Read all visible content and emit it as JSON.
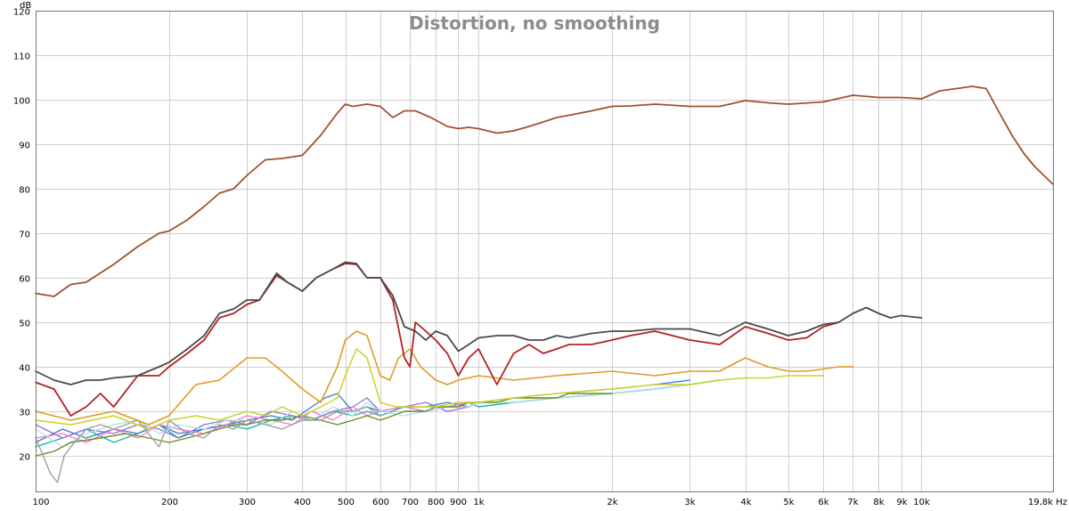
{
  "chart_data": {
    "type": "line",
    "title": "Distortion, no smoothing",
    "ylabel": "dB",
    "xunit": "Hz",
    "xscale": "log",
    "xlim": [
      100,
      19800
    ],
    "ylim": [
      12,
      120
    ],
    "grid": true,
    "legend": "none",
    "x_ticks": [
      {
        "v": 100,
        "label": "100"
      },
      {
        "v": 200,
        "label": "200"
      },
      {
        "v": 300,
        "label": "300"
      },
      {
        "v": 400,
        "label": "400"
      },
      {
        "v": 500,
        "label": "500"
      },
      {
        "v": 600,
        "label": "600"
      },
      {
        "v": 700,
        "label": "700"
      },
      {
        "v": 800,
        "label": "800"
      },
      {
        "v": 900,
        "label": "900"
      },
      {
        "v": 1000,
        "label": "1k"
      },
      {
        "v": 2000,
        "label": "2k"
      },
      {
        "v": 3000,
        "label": "3k"
      },
      {
        "v": 4000,
        "label": "4k"
      },
      {
        "v": 5000,
        "label": "5k"
      },
      {
        "v": 6000,
        "label": "6k"
      },
      {
        "v": 7000,
        "label": "7k"
      },
      {
        "v": 8000,
        "label": "8k"
      },
      {
        "v": 9000,
        "label": "9k"
      },
      {
        "v": 10000,
        "label": "10k"
      },
      {
        "v": 19800,
        "label": "19,8k Hz"
      }
    ],
    "y_ticks": [
      20,
      30,
      40,
      50,
      60,
      70,
      80,
      90,
      100,
      110,
      120
    ],
    "series": [
      {
        "color": "#a0522d",
        "width": 1.8,
        "x": [
          100,
          110,
          120,
          130,
          150,
          170,
          190,
          200,
          220,
          240,
          260,
          280,
          300,
          330,
          360,
          400,
          440,
          480,
          500,
          520,
          560,
          600,
          640,
          680,
          720,
          780,
          850,
          900,
          950,
          1000,
          1100,
          1200,
          1300,
          1400,
          1500,
          1600,
          1800,
          2000,
          2200,
          2500,
          3000,
          3500,
          4000,
          4500,
          5000,
          6000,
          7000,
          8000,
          9000,
          10000,
          11000,
          12000,
          13000,
          14000,
          15000,
          16000,
          17000,
          18000,
          19800
        ],
        "y": [
          56.5,
          55.8,
          58.5,
          59,
          63,
          67,
          70,
          70.5,
          73,
          76,
          79,
          80,
          83,
          86.5,
          86.8,
          87.5,
          92,
          97,
          99,
          98.5,
          99,
          98.5,
          96,
          97.5,
          97.5,
          96,
          94,
          93.5,
          93.8,
          93.5,
          92.5,
          93,
          94,
          95,
          96,
          96.5,
          97.5,
          98.5,
          98.6,
          99,
          98.5,
          98.5,
          99.8,
          99.3,
          99,
          99.5,
          101,
          100.5,
          100.5,
          100.2,
          102,
          102.5,
          103,
          102.5,
          97,
          92,
          88,
          85,
          81
        ]
      },
      {
        "color": "#4a4a4a",
        "width": 1.8,
        "x": [
          100,
          110,
          120,
          130,
          140,
          150,
          170,
          190,
          200,
          220,
          240,
          260,
          280,
          300,
          320,
          350,
          370,
          400,
          430,
          470,
          500,
          530,
          560,
          600,
          640,
          680,
          720,
          760,
          800,
          850,
          900,
          950,
          1000,
          1100,
          1200,
          1300,
          1400,
          1500,
          1600,
          1800,
          2000,
          2200,
          2500,
          3000,
          3500,
          4000,
          4500,
          5000,
          5500,
          6000,
          6500,
          7000,
          7500,
          8000,
          8500,
          9000,
          10000
        ],
        "y": [
          39,
          37,
          36,
          37,
          37,
          37.5,
          38,
          40,
          41,
          44,
          47,
          52,
          53,
          55,
          55,
          61,
          59,
          57,
          60,
          62,
          63.5,
          63.2,
          60,
          60,
          56,
          49,
          48,
          46,
          48,
          47,
          43.5,
          45,
          46.5,
          47,
          47,
          46,
          46,
          47,
          46.5,
          47.5,
          48,
          48,
          48.5,
          48.5,
          47,
          50,
          48.5,
          47,
          48,
          49.5,
          50,
          52,
          53.3,
          52,
          51,
          51.5,
          51
        ]
      },
      {
        "color": "#b22222",
        "width": 1.8,
        "x": [
          100,
          110,
          120,
          130,
          140,
          150,
          170,
          190,
          200,
          220,
          240,
          260,
          280,
          300,
          320,
          350,
          370,
          400,
          430,
          470,
          500,
          530,
          560,
          600,
          640,
          680,
          700,
          720,
          760,
          800,
          850,
          900,
          950,
          1000,
          1100,
          1200,
          1300,
          1400,
          1500,
          1600,
          1800,
          2000,
          2200,
          2500,
          3000,
          3500,
          4000,
          4500,
          5000,
          5500,
          6000,
          6500
        ],
        "y": [
          36.5,
          35,
          29,
          31,
          34,
          31,
          38,
          38,
          40,
          43,
          46,
          51,
          52,
          54,
          55,
          60.5,
          59,
          57,
          60,
          62,
          63.2,
          63,
          60,
          60,
          55,
          42,
          40,
          50,
          48,
          46,
          43,
          38,
          42,
          44,
          36,
          43,
          45,
          43,
          44,
          45,
          45,
          46,
          47,
          48,
          46,
          45,
          49,
          47.5,
          46,
          46.5,
          49,
          50
        ]
      },
      {
        "color": "#e09a25",
        "width": 1.6,
        "x": [
          100,
          120,
          150,
          180,
          200,
          230,
          260,
          300,
          330,
          360,
          400,
          440,
          480,
          500,
          530,
          560,
          600,
          630,
          660,
          700,
          740,
          800,
          850,
          900,
          1000,
          1200,
          1500,
          2000,
          2500,
          3000,
          3500,
          4000,
          4500,
          5000,
          5500,
          6000,
          6500,
          7000
        ],
        "y": [
          30,
          28,
          30,
          27,
          29,
          36,
          37,
          42,
          42,
          39,
          35,
          32,
          40,
          46,
          48,
          47,
          38,
          37,
          42,
          44,
          40,
          37,
          36,
          37,
          38,
          37,
          38,
          39,
          38,
          39,
          39,
          42,
          40,
          39,
          39,
          39.5,
          40,
          40
        ]
      },
      {
        "color": "#c8d42a",
        "width": 1.5,
        "x": [
          100,
          120,
          150,
          180,
          200,
          230,
          260,
          300,
          330,
          360,
          400,
          440,
          480,
          500,
          530,
          560,
          600,
          650,
          700,
          800,
          900,
          1000,
          1200,
          1500,
          2000,
          2500,
          3000,
          3500,
          4000,
          4500,
          5000,
          5500,
          6000
        ],
        "y": [
          28,
          27,
          29,
          26,
          28,
          29,
          28,
          30,
          29,
          31,
          29,
          31,
          33,
          38,
          44,
          42,
          32,
          31,
          31,
          31,
          32,
          32,
          33,
          34,
          35,
          36,
          36,
          37,
          37.5,
          37.5,
          38,
          38,
          38
        ]
      },
      {
        "color": "#9e9e9e",
        "width": 1.4,
        "x": [
          100,
          104,
          108,
          112,
          116,
          120,
          130,
          140,
          150,
          170,
          190,
          200,
          220,
          240,
          260,
          280,
          300,
          330,
          360,
          400,
          440,
          480,
          520,
          560,
          600
        ],
        "y": [
          24,
          20,
          16,
          14,
          20,
          22,
          26,
          27,
          26,
          28,
          22,
          28,
          25,
          24,
          27,
          26,
          28,
          27,
          26,
          28,
          28,
          30,
          30,
          31,
          29
        ]
      },
      {
        "color": "#6b8e23",
        "width": 1.4,
        "x": [
          100,
          110,
          120,
          140,
          160,
          180,
          200,
          220,
          240,
          260,
          280,
          300,
          330,
          360,
          400,
          440,
          480,
          520,
          560,
          600,
          640,
          680,
          720,
          760,
          800,
          850,
          900,
          950,
          1000,
          1100,
          1200,
          1300,
          1400,
          1500,
          1600,
          1800,
          2000
        ],
        "y": [
          20,
          21,
          23,
          24,
          25,
          24,
          23,
          24,
          25,
          26,
          27,
          27,
          28,
          28,
          29,
          28,
          27,
          28,
          29,
          28,
          29,
          30,
          30,
          30,
          31,
          31,
          31,
          32,
          32,
          32,
          33,
          33,
          33,
          33,
          34,
          34,
          34
        ]
      },
      {
        "color": "#b0e0e6",
        "width": 1.3,
        "x": [
          100,
          115,
          130,
          150,
          170,
          190,
          210,
          240,
          270,
          300,
          340,
          380,
          420,
          470,
          520,
          560,
          600,
          680,
          760,
          850,
          950,
          1000,
          1200,
          1500,
          2000,
          2500,
          3000,
          3500
        ],
        "y": [
          26,
          22,
          25,
          27,
          28,
          25,
          27,
          26,
          28,
          28,
          27,
          30,
          28,
          31,
          29,
          32,
          30,
          29,
          30,
          31,
          31,
          32,
          32,
          33,
          34,
          35,
          36,
          37
        ]
      },
      {
        "color": "#ff77c8",
        "width": 1.3,
        "x": [
          100,
          115,
          130,
          150,
          170,
          190,
          210,
          240,
          270,
          300,
          340,
          380,
          420,
          470,
          520,
          560,
          600,
          680,
          760,
          850,
          950,
          1000,
          1200,
          1500,
          2000,
          2500,
          3000,
          3500
        ],
        "y": [
          24,
          25,
          23,
          26,
          24,
          27,
          26,
          25,
          27,
          29,
          28,
          27,
          30,
          28,
          31,
          29,
          30,
          31,
          30,
          31,
          32,
          32,
          33,
          34,
          35,
          36,
          36,
          37
        ]
      },
      {
        "color": "#9370db",
        "width": 1.3,
        "x": [
          100,
          115,
          130,
          150,
          170,
          190,
          210,
          240,
          270,
          300,
          340,
          380,
          420,
          470,
          520,
          560,
          600,
          680,
          760,
          850,
          950,
          1000,
          1200,
          1500,
          2000,
          2500,
          3000
        ],
        "y": [
          27,
          24,
          26,
          25,
          27,
          26,
          24,
          27,
          28,
          27,
          30,
          29,
          28,
          30,
          31,
          33,
          30,
          31,
          32,
          30,
          31,
          32,
          33,
          33,
          34,
          35,
          36
        ]
      },
      {
        "color": "#3a7ec9",
        "width": 1.3,
        "x": [
          100,
          115,
          130,
          150,
          170,
          190,
          210,
          240,
          270,
          300,
          340,
          380,
          420,
          450,
          480,
          520,
          560,
          600,
          680,
          760,
          850,
          950,
          1000,
          1200,
          1500,
          2000,
          2500,
          3000
        ],
        "y": [
          23,
          26,
          24,
          26,
          25,
          27,
          25,
          26,
          27,
          28,
          29,
          28,
          31,
          33,
          34,
          30,
          31,
          30,
          31,
          31,
          32,
          31,
          32,
          33,
          34,
          35,
          36,
          37
        ]
      },
      {
        "color": "#1ab3b3",
        "width": 1.4,
        "x": [
          100,
          115,
          130,
          150,
          170,
          190,
          210,
          240,
          270,
          300,
          340,
          380,
          420,
          470,
          520,
          560,
          600,
          680,
          760,
          850,
          950,
          1000,
          1200,
          1500,
          2000,
          2500,
          3000,
          3500
        ],
        "y": [
          22,
          24,
          26,
          23,
          25,
          27,
          24,
          26,
          27,
          26,
          28,
          29,
          28,
          30,
          29,
          30,
          29,
          31,
          30,
          31,
          32,
          31,
          32,
          33,
          34,
          35,
          36,
          37
        ]
      }
    ]
  }
}
